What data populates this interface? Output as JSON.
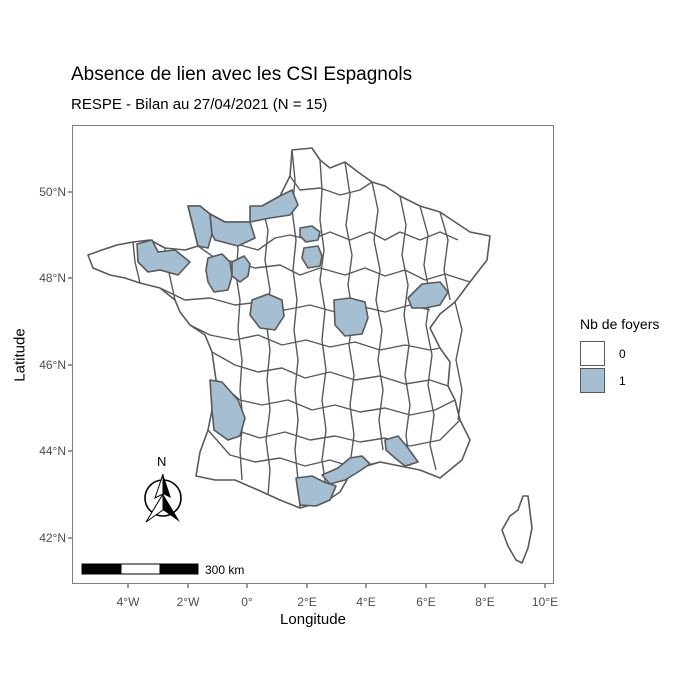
{
  "title": "Absence de lien avec les CSI Espagnols",
  "subtitle": "RESPE - Bilan au 27/04/2021 (N = 15)",
  "axes": {
    "xlabel": "Longitude",
    "ylabel": "Latitude",
    "x_ticks": [
      "4°W",
      "2°W",
      "0°",
      "2°E",
      "4°E",
      "6°E",
      "8°E",
      "10°E"
    ],
    "y_ticks": [
      "50°N",
      "48°N",
      "46°N",
      "44°N",
      "42°N"
    ]
  },
  "legend": {
    "title": "Nb de foyers",
    "items": [
      {
        "label": "0",
        "color": "#ffffff"
      },
      {
        "label": "1",
        "color": "#a3bfd1"
      }
    ]
  },
  "scale_bar": {
    "label": "300 km"
  },
  "north_arrow": {
    "label": "N"
  },
  "colors": {
    "border": "#595959",
    "fill_highlight": "#a3bfd1",
    "fill_default": "#ffffff"
  },
  "highlighted_departments": [
    "Finistère / Côtes-d'Armor",
    "Manche",
    "Calvados",
    "Seine-Maritime",
    "Paris / Hauts-de-Seine",
    "Essonne",
    "Mayenne",
    "Sarthe",
    "Indre",
    "Nièvre",
    "Haute-Saône",
    "Gironde",
    "Hérault",
    "Aude",
    "Bouches-du-Rhône"
  ]
}
